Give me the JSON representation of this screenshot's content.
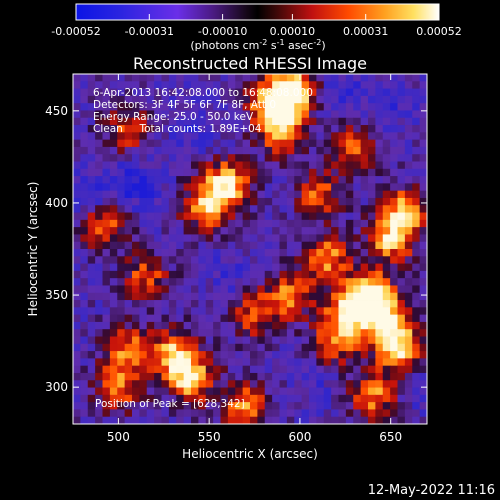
{
  "chart_data": {
    "type": "heatmap",
    "title": "Reconstructed RHESSI Image",
    "xlabel": "Heliocentric X (arcsec)",
    "ylabel": "Heliocentric Y (arcsec)",
    "xlim": [
      475,
      670
    ],
    "ylim": [
      280,
      470
    ],
    "xticks": [
      500,
      550,
      600,
      650
    ],
    "yticks": [
      300,
      350,
      400,
      450
    ],
    "grid": false,
    "colorbar": {
      "unit_label": "(photons cm",
      "unit_exp1": "-2",
      "unit_mid": " s",
      "unit_exp2": "-1",
      "unit_mid2": " asec",
      "unit_exp3": "-2",
      "unit_end": ")",
      "ticks": [
        "-0.00052",
        "-0.00031",
        "-0.00010",
        "0.00010",
        "0.00031",
        "0.00052"
      ],
      "range": [
        -0.00052,
        0.00052
      ]
    },
    "annotations": [
      "6-Apr-2013 16:42:08.000 to 16:48:08.000",
      "Detectors: 3F 4F 5F 6F 7F 8F, Att 0",
      "Energy Range: 25.0 - 50.0 keV",
      "Clean     Total counts: 1.89E+04"
    ],
    "peak_label": "Position of Peak = [628,342]",
    "peak": [
      628,
      342
    ],
    "hotspots": [
      {
        "x": 585,
        "y": 455,
        "v": 0.9
      },
      {
        "x": 590,
        "y": 440,
        "v": 0.8
      },
      {
        "x": 598,
        "y": 462,
        "v": 0.85
      },
      {
        "x": 560,
        "y": 410,
        "v": 0.95
      },
      {
        "x": 548,
        "y": 398,
        "v": 0.75
      },
      {
        "x": 628,
        "y": 342,
        "v": 1.0
      },
      {
        "x": 640,
        "y": 350,
        "v": 0.9
      },
      {
        "x": 648,
        "y": 335,
        "v": 0.85
      },
      {
        "x": 655,
        "y": 320,
        "v": 0.8
      },
      {
        "x": 615,
        "y": 370,
        "v": 0.7
      },
      {
        "x": 650,
        "y": 380,
        "v": 0.75
      },
      {
        "x": 658,
        "y": 395,
        "v": 0.8
      },
      {
        "x": 595,
        "y": 350,
        "v": 0.6
      },
      {
        "x": 620,
        "y": 325,
        "v": 0.55
      },
      {
        "x": 540,
        "y": 305,
        "v": 0.85
      },
      {
        "x": 530,
        "y": 318,
        "v": 0.7
      },
      {
        "x": 500,
        "y": 300,
        "v": 0.55
      },
      {
        "x": 505,
        "y": 320,
        "v": 0.6
      },
      {
        "x": 492,
        "y": 388,
        "v": 0.55
      },
      {
        "x": 570,
        "y": 290,
        "v": 0.6
      },
      {
        "x": 640,
        "y": 295,
        "v": 0.65
      },
      {
        "x": 515,
        "y": 360,
        "v": 0.45
      },
      {
        "x": 575,
        "y": 340,
        "v": 0.5
      },
      {
        "x": 505,
        "y": 440,
        "v": 0.4
      },
      {
        "x": 630,
        "y": 430,
        "v": 0.45
      },
      {
        "x": 610,
        "y": 405,
        "v": 0.5
      }
    ],
    "coldspots": [
      {
        "x": 510,
        "y": 410,
        "v": -0.8
      },
      {
        "x": 485,
        "y": 405,
        "v": -0.7
      },
      {
        "x": 540,
        "y": 440,
        "v": -0.6
      },
      {
        "x": 620,
        "y": 460,
        "v": -0.7
      },
      {
        "x": 650,
        "y": 455,
        "v": -0.6
      },
      {
        "x": 560,
        "y": 360,
        "v": -0.55
      },
      {
        "x": 610,
        "y": 300,
        "v": -0.5
      },
      {
        "x": 665,
        "y": 300,
        "v": -0.5
      }
    ]
  },
  "footer": {
    "date": "12-May-2022 11:16"
  }
}
